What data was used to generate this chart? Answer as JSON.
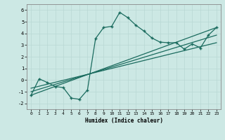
{
  "xlabel": "Humidex (Indice chaleur)",
  "xlim": [
    -0.5,
    23.5
  ],
  "ylim": [
    -2.5,
    6.5
  ],
  "xticks": [
    0,
    1,
    2,
    3,
    4,
    5,
    6,
    7,
    8,
    9,
    10,
    11,
    12,
    13,
    14,
    15,
    16,
    17,
    18,
    19,
    20,
    21,
    22,
    23
  ],
  "yticks": [
    -2,
    -1,
    0,
    1,
    2,
    3,
    4,
    5,
    6
  ],
  "bg_color": "#cce8e4",
  "line_color": "#1a6b5e",
  "line1_x": [
    0,
    1,
    2,
    3,
    4,
    5,
    6,
    7,
    8,
    9,
    10,
    11,
    12,
    13,
    14,
    15,
    16,
    17,
    18,
    19,
    20,
    21,
    22,
    23
  ],
  "line1_y": [
    -1.3,
    0.1,
    -0.2,
    -0.55,
    -0.65,
    -1.55,
    -1.65,
    -0.85,
    3.55,
    4.5,
    4.6,
    5.8,
    5.35,
    4.7,
    4.2,
    3.6,
    3.25,
    3.2,
    3.2,
    2.65,
    3.1,
    2.75,
    3.85,
    4.5
  ],
  "line2_x": [
    0,
    23
  ],
  "line2_y": [
    -1.3,
    4.5
  ],
  "line3_x": [
    0,
    23
  ],
  "line3_y": [
    -1.0,
    3.85
  ],
  "line4_x": [
    0,
    23
  ],
  "line4_y": [
    -0.7,
    3.2
  ]
}
